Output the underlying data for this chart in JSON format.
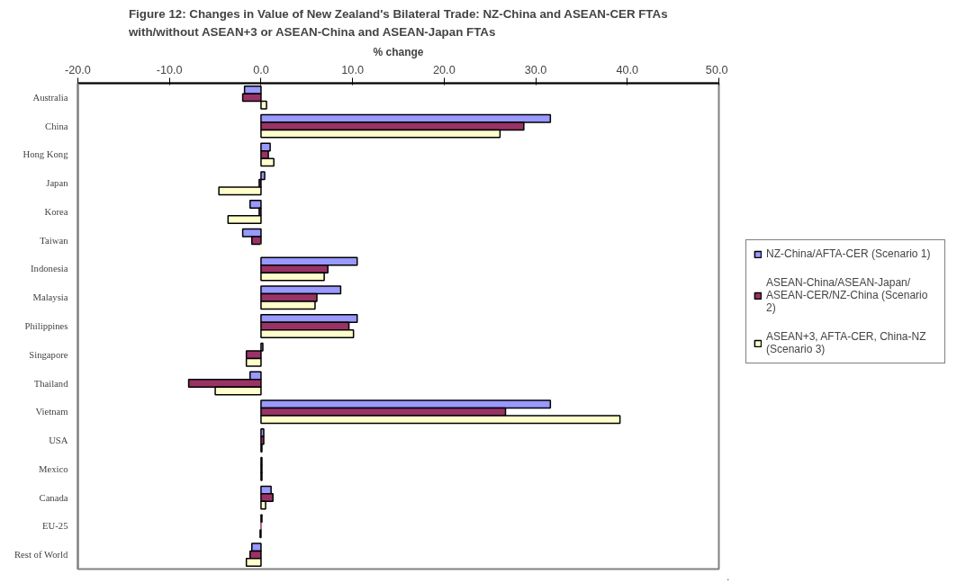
{
  "chart_data": {
    "type": "bar",
    "orientation": "horizontal",
    "title": "Figure 12: Changes in Value of New Zealand's Bilateral Trade: NZ-China and ASEAN-CER FTAs\nwith/without ASEAN+3 or ASEAN-China and ASEAN-Japan FTAs",
    "xlabel": "% change",
    "categories": [
      "Australia",
      "China",
      "Hong Kong",
      "Japan",
      "Korea",
      "Taiwan",
      "Indonesia",
      "Malaysia",
      "Philippines",
      "Singapore",
      "Thailand",
      "Vietnam",
      "USA",
      "Mexico",
      "Canada",
      "EU-25",
      "Rest of World"
    ],
    "series": [
      {
        "name": "NZ-China/AFTA-CER (Scenario 1)",
        "color": "#9999ff",
        "values": [
          -1.8,
          31.6,
          1.0,
          0.4,
          -1.2,
          -2.0,
          10.5,
          8.7,
          10.5,
          0.2,
          -1.2,
          31.6,
          0.3,
          0.1,
          1.1,
          0.1,
          -1.0
        ]
      },
      {
        "name": "ASEAN-China/ASEAN-Japan/ASEAN-CER/NZ-China (Scenario 2)",
        "color": "#993366",
        "values": [
          -2.0,
          28.7,
          0.8,
          -0.2,
          -0.2,
          -1.0,
          7.3,
          6.1,
          9.6,
          -1.6,
          -7.9,
          26.7,
          0.3,
          0.1,
          1.3,
          0.0,
          -1.2
        ]
      },
      {
        "name": "ASEAN+3, AFTA-CER, China-NZ (Scenario 3)",
        "color": "#ffffcc",
        "values": [
          0.6,
          26.1,
          1.4,
          -4.6,
          -3.6,
          0.0,
          6.9,
          5.9,
          10.1,
          -1.6,
          -5.0,
          39.2,
          0.1,
          0.1,
          0.5,
          -0.1,
          -1.6
        ]
      }
    ],
    "xlim": [
      -20,
      50
    ],
    "xticks": [
      {
        "value": -20,
        "label": "-20.0"
      },
      {
        "value": -10,
        "label": "-10.0"
      },
      {
        "value": 0,
        "label": "0.0"
      },
      {
        "value": 10,
        "label": "10.0"
      },
      {
        "value": 20,
        "label": "20.0"
      },
      {
        "value": 30,
        "label": "30.0"
      },
      {
        "value": 40,
        "label": "40.0"
      },
      {
        "value": 50,
        "label": "50.0"
      }
    ],
    "grid": false,
    "legend": "right"
  }
}
